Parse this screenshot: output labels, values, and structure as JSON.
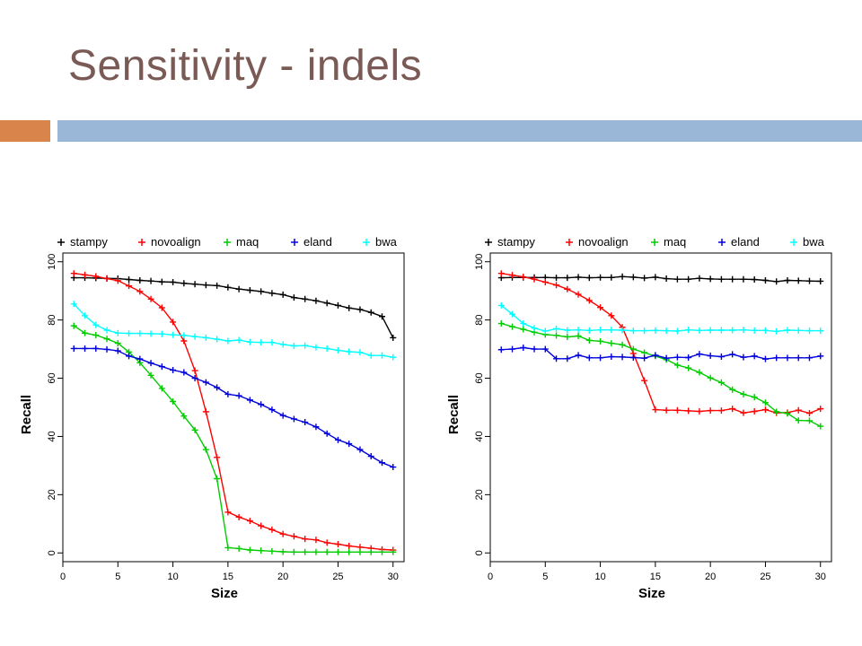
{
  "slide": {
    "title": "Sensitivity - indels",
    "accent_color_left": "#d9844a",
    "accent_color_right": "#9bb7d8"
  },
  "chart_data": [
    {
      "type": "line",
      "xlabel": "Size",
      "ylabel": "Recall",
      "xlim": [
        0,
        31
      ],
      "ylim": [
        -3,
        103
      ],
      "xticks": [
        0,
        5,
        10,
        15,
        20,
        25,
        30
      ],
      "yticks": [
        0,
        20,
        40,
        60,
        80,
        100
      ],
      "legend_position": "top",
      "x": [
        1,
        2,
        3,
        4,
        5,
        6,
        7,
        8,
        9,
        10,
        11,
        12,
        13,
        14,
        15,
        16,
        17,
        18,
        19,
        20,
        21,
        22,
        23,
        24,
        25,
        26,
        27,
        28,
        29,
        30
      ],
      "series": [
        {
          "name": "stampy",
          "color": "#000000",
          "values": [
            94.5,
            94.5,
            94.4,
            94.3,
            94.2,
            93.9,
            93.6,
            93.4,
            93.1,
            93.0,
            92.6,
            92.3,
            92.0,
            91.8,
            91.2,
            90.6,
            90.2,
            89.8,
            89.2,
            88.7,
            87.7,
            87.2,
            86.6,
            85.8,
            85.0,
            84.1,
            83.6,
            82.6,
            81.2,
            73.9
          ]
        },
        {
          "name": "novoalign",
          "color": "#ff0000",
          "values": [
            96,
            95.5,
            95,
            94.2,
            93.5,
            91.7,
            89.8,
            87.2,
            84.2,
            79.3,
            72.8,
            62.6,
            48.5,
            32.8,
            14.0,
            12.3,
            11.0,
            9.3,
            8.0,
            6.5,
            5.7,
            4.8,
            4.5,
            3.5,
            3.0,
            2.4,
            2.0,
            1.6,
            1.2,
            1.0
          ]
        },
        {
          "name": "maq",
          "color": "#00cc00",
          "values": [
            78,
            75.5,
            74.8,
            73.5,
            72.0,
            69.0,
            65.3,
            61.0,
            56.5,
            52.0,
            47.0,
            42.2,
            35.5,
            25.5,
            1.8,
            1.5,
            1.0,
            0.8,
            0.6,
            0.4,
            0.3,
            0.3,
            0.3,
            0.3,
            0.3,
            0.3,
            0.3,
            0.3,
            0.3,
            0.3
          ]
        },
        {
          "name": "eland",
          "color": "#0000dd",
          "values": [
            70.2,
            70.2,
            70.2,
            69.9,
            69.4,
            67.6,
            66.6,
            65.2,
            64.0,
            62.8,
            62.0,
            60.0,
            58.6,
            56.8,
            54.5,
            54.0,
            52.5,
            51.0,
            49.2,
            47.2,
            46.0,
            44.9,
            43.3,
            41.0,
            38.8,
            37.5,
            35.5,
            33.2,
            31.0,
            29.5
          ]
        },
        {
          "name": "bwa",
          "color": "#00ffff",
          "values": [
            85.5,
            81.5,
            78.3,
            76.5,
            75.5,
            75.4,
            75.4,
            75.3,
            75.2,
            74.9,
            74.7,
            74.3,
            73.9,
            73.4,
            72.8,
            73.1,
            72.4,
            72.3,
            72.3,
            71.6,
            71.1,
            71.2,
            70.6,
            70.2,
            69.6,
            69.1,
            68.9,
            67.8,
            67.8,
            67.2
          ]
        }
      ]
    },
    {
      "type": "line",
      "xlabel": "Size",
      "ylabel": "Recall",
      "xlim": [
        0,
        31
      ],
      "ylim": [
        -3,
        103
      ],
      "xticks": [
        0,
        5,
        10,
        15,
        20,
        25,
        30
      ],
      "yticks": [
        0,
        20,
        40,
        60,
        80,
        100
      ],
      "legend_position": "top",
      "x": [
        1,
        2,
        3,
        4,
        5,
        6,
        7,
        8,
        9,
        10,
        11,
        12,
        13,
        14,
        15,
        16,
        17,
        18,
        19,
        20,
        21,
        22,
        23,
        24,
        25,
        26,
        27,
        28,
        29,
        30
      ],
      "series": [
        {
          "name": "stampy",
          "color": "#000000",
          "values": [
            94.5,
            94.6,
            94.6,
            94.6,
            94.6,
            94.5,
            94.5,
            94.7,
            94.5,
            94.6,
            94.6,
            94.9,
            94.7,
            94.4,
            94.7,
            94.2,
            94.0,
            94.0,
            94.3,
            94.1,
            94.0,
            94.0,
            94.0,
            93.9,
            93.6,
            93.2,
            93.6,
            93.5,
            93.4,
            93.3
          ]
        },
        {
          "name": "novoalign",
          "color": "#ff0000",
          "values": [
            96,
            95.4,
            94.8,
            94.0,
            93.0,
            92.0,
            90.6,
            88.8,
            86.7,
            84.3,
            81.5,
            77.5,
            68.5,
            59.2,
            49.2,
            49.0,
            49.0,
            48.8,
            48.6,
            48.9,
            48.9,
            49.5,
            48.1,
            48.6,
            49.2,
            48.1,
            48.2,
            49.0,
            48.0,
            49.5
          ]
        },
        {
          "name": "maq",
          "color": "#00cc00",
          "values": [
            78.8,
            77.7,
            76.8,
            75.8,
            75.0,
            74.7,
            74.2,
            74.5,
            73.0,
            72.7,
            72.0,
            71.5,
            70.0,
            68.8,
            67.6,
            66.4,
            64.5,
            63.5,
            62.0,
            60.1,
            58.5,
            56.1,
            54.5,
            53.5,
            51.6,
            48.5,
            47.9,
            45.5,
            45.4,
            43.5
          ]
        },
        {
          "name": "eland",
          "color": "#0000dd",
          "values": [
            69.8,
            70.0,
            70.5,
            70.0,
            70.0,
            66.7,
            66.7,
            67.9,
            67.0,
            67.0,
            67.4,
            67.3,
            67.1,
            66.9,
            67.9,
            66.9,
            67.2,
            67.1,
            68.3,
            67.7,
            67.4,
            68.2,
            67.2,
            67.6,
            66.6,
            67.0,
            67.0,
            67.0,
            67.0,
            67.6
          ]
        },
        {
          "name": "bwa",
          "color": "#00ffff",
          "values": [
            85.0,
            82.0,
            78.8,
            77.2,
            76.2,
            77.0,
            76.5,
            76.6,
            76.4,
            76.6,
            76.6,
            76.5,
            76.3,
            76.3,
            76.4,
            76.3,
            76.2,
            76.6,
            76.4,
            76.5,
            76.5,
            76.5,
            76.6,
            76.4,
            76.4,
            76.1,
            76.5,
            76.4,
            76.3,
            76.3
          ]
        }
      ]
    }
  ]
}
